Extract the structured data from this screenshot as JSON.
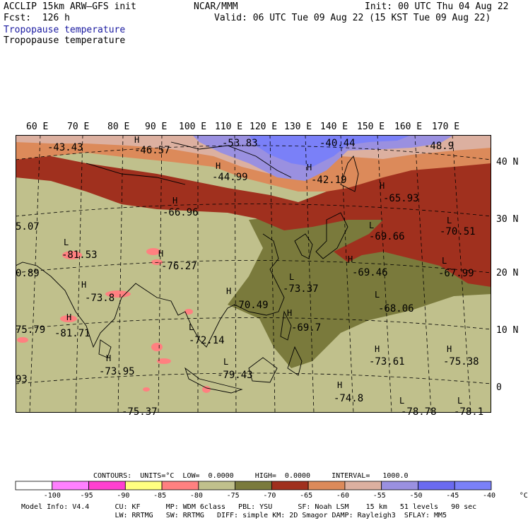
{
  "header": {
    "model": "ACCLIP 15km ARW–GFS init",
    "org": "NCAR/MMM",
    "init": "Init: 00 UTC Thu 04 Aug 22",
    "fcst": "Fcst:  126 h",
    "valid": "Valid: 06 UTC Tue 09 Aug 22 (15 KST Tue 09 Aug 22)",
    "field1": "Tropopause temperature",
    "field2": "Tropopause temperature"
  },
  "lon_labels": [
    "60 E",
    "70 E",
    "80 E",
    "90 E",
    "100 E",
    "110 E",
    "120 E",
    "130 E",
    "140 E",
    "150 E",
    "160 E",
    "170 E"
  ],
  "lat_labels": [
    "40 N",
    "30 N",
    "20 N",
    "10 N",
    "0"
  ],
  "map_labels": [
    {
      "t": "-43.43"
    },
    {
      "t": "-46.57"
    },
    {
      "t": "-53.83"
    },
    {
      "t": "-40.44"
    },
    {
      "t": "-48.9"
    },
    {
      "t": "-44.99"
    },
    {
      "t": "-42.19"
    },
    {
      "t": "-65.93"
    },
    {
      "t": "-66.96"
    },
    {
      "t": "-69.66"
    },
    {
      "t": "-70.51"
    },
    {
      "t": "5.07"
    },
    {
      "t": "-81.53"
    },
    {
      "t": "-76.27"
    },
    {
      "t": "-69.46"
    },
    {
      "t": "-67.99"
    },
    {
      "t": "0.89"
    },
    {
      "t": "-73.37"
    },
    {
      "t": "-73.8"
    },
    {
      "t": "-70.49"
    },
    {
      "t": "-68.06"
    },
    {
      "t": "-69.7"
    },
    {
      "t": "75.79"
    },
    {
      "t": "-81.71"
    },
    {
      "t": "-72.14"
    },
    {
      "t": "-73.61"
    },
    {
      "t": "-75.38"
    },
    {
      "t": "-73.95"
    },
    {
      "t": "-79.43"
    },
    {
      "t": "93"
    },
    {
      "t": "-74.8"
    },
    {
      "t": "-78.78"
    },
    {
      "t": "-78.1"
    },
    {
      "t": "-75.37"
    }
  ],
  "contours_line": "CONTOURS:  UNITS=°C  LOW=  0.0000     HIGH=  0.0000     INTERVAL=   1000.0",
  "colorbar": {
    "colors": [
      "#ffffff",
      "#ff80ff",
      "#ff3fd0",
      "#ffff80",
      "#ff8080",
      "#c0c08c",
      "#7a7a3c",
      "#a0301e",
      "#dc8a5a",
      "#dcb0a0",
      "#9a90e0",
      "#6a6af0",
      "#7a80f8"
    ],
    "labels": [
      "-100",
      "-95",
      "-90",
      "-85",
      "-80",
      "-75",
      "-70",
      "-65",
      "-60",
      "-55",
      "-50",
      "-45",
      "-40",
      "°C"
    ]
  },
  "footer": {
    "line1": "Model Info: V4.4      CU: KF      MP: WDM 6class   PBL: YSU      SF: Noah LSM    15 km   51 levels   90 sec",
    "line2": "                      LW: RRTMG   SW: RRTMG   DIFF: simple KM: 2D Smagor DAMP: Rayleigh3  SFLAY: MM5"
  }
}
